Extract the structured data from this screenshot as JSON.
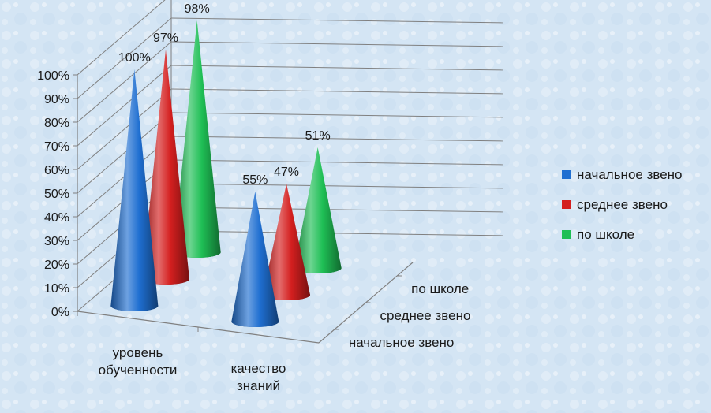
{
  "chart_data": {
    "type": "bar",
    "style": "3d-cone",
    "categories": [
      "уровень обученности",
      "качество знаний"
    ],
    "category_lines": [
      [
        "уровень",
        "обученности"
      ],
      [
        "качество",
        "знаний"
      ]
    ],
    "series": [
      {
        "name": "начальное звено",
        "values": [
          100,
          55
        ],
        "labels": [
          "100%",
          "55%"
        ],
        "color": "#1f6fd1"
      },
      {
        "name": "среднее звено",
        "values": [
          97,
          47
        ],
        "labels": [
          "97%",
          "47%"
        ],
        "color": "#d41f1f"
      },
      {
        "name": "по школе",
        "values": [
          98,
          51
        ],
        "labels": [
          "98%",
          "51%"
        ],
        "color": "#1fbf55"
      }
    ],
    "depth_labels": [
      "начальное звено",
      "среднее звено",
      "по школе"
    ],
    "y_ticks": [
      "0%",
      "10%",
      "20%",
      "30%",
      "40%",
      "50%",
      "60%",
      "70%",
      "80%",
      "90%",
      "100%"
    ],
    "ylim": [
      0,
      100
    ],
    "grid": true,
    "legend_position": "right",
    "title": "",
    "xlabel": "",
    "ylabel": ""
  }
}
